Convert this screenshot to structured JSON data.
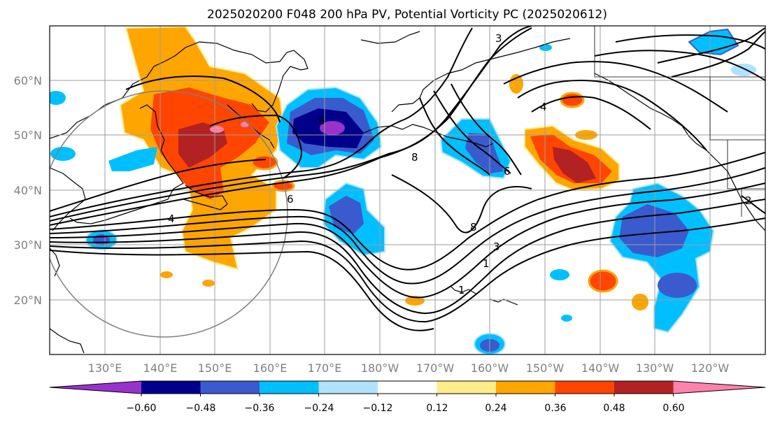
{
  "title": "2025020200 F048 200 hPa PV, Potential Vorticity PC (2025020612)",
  "map": {
    "lat_labels": [
      "60°N",
      "50°N",
      "40°N",
      "30°N",
      "20°N"
    ],
    "lon_labels": [
      "130°E",
      "140°E",
      "150°E",
      "160°E",
      "170°E",
      "180°W",
      "170°W",
      "160°W",
      "150°W",
      "140°W",
      "130°W",
      "120°W"
    ],
    "contour_labels": [
      "3",
      "4",
      "8",
      "6",
      "6",
      "6",
      "8",
      "4",
      "3",
      "1",
      "1",
      "2"
    ]
  },
  "colorbar": {
    "colors": [
      "#9932cc",
      "#00008b",
      "#3a5bcd",
      "#00bfff",
      "#b0e2ff",
      "#ffffff",
      "#ffec8b",
      "#ffa500",
      "#ff4500",
      "#b22222",
      "#ff82ab"
    ],
    "tick_labels": [
      "−0.60",
      "−0.48",
      "−0.36",
      "−0.24",
      "−0.12",
      "0.12",
      "0.24",
      "0.36",
      "0.48",
      "0.60"
    ]
  },
  "colors": {
    "grid": "#9e9e9e",
    "axis_label": "#808080",
    "contour": "#000000",
    "circle": "#808080"
  }
}
